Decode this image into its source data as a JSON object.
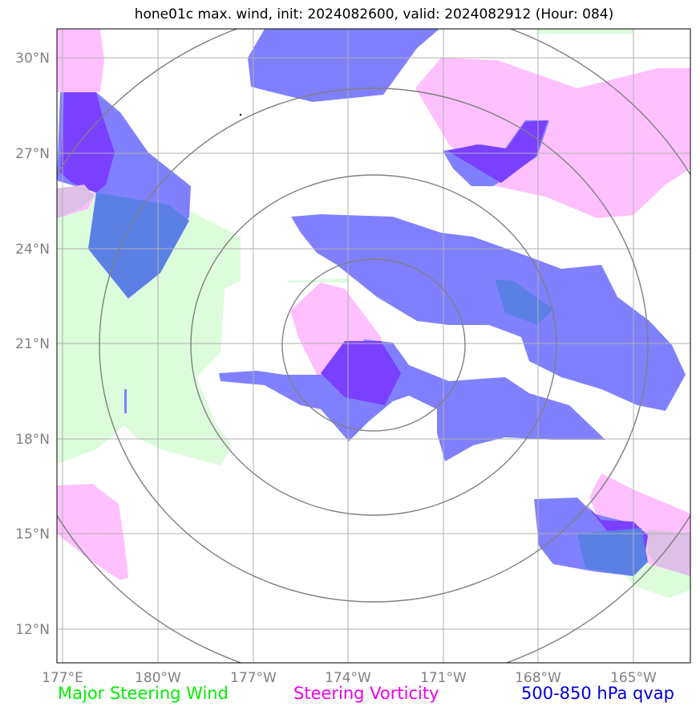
{
  "title": "hone01c max. wind, init: 2024082600, valid: 2024082912 (Hour: 084)",
  "axes": {
    "lat_ticks": [
      "30°N",
      "27°N",
      "24°N",
      "21°N",
      "18°N",
      "15°N",
      "12°N"
    ],
    "lon_ticks": [
      "177°E",
      "180°W",
      "177°W",
      "174°W",
      "171°W",
      "168°W",
      "165°W"
    ]
  },
  "legend": {
    "wind": "Major Steering Wind",
    "vorticity": "Steering Vorticity",
    "qvap": "500-850 hPa qvap"
  },
  "colors": {
    "wind_fill": "#dcfcdc",
    "vorticity_fill": "#ffc0ff",
    "qvap_fill": "#8080ff",
    "overlap_fill": "#7a40ff",
    "grid": "#b0b0b0",
    "range_rings": "#808080"
  },
  "map": {
    "range_rings": 4,
    "storm_center": "21°N 173.6°W"
  }
}
